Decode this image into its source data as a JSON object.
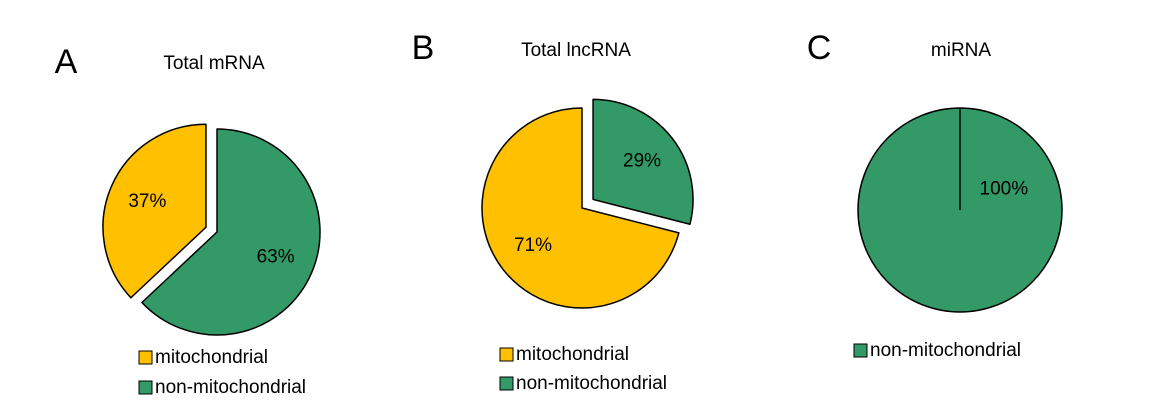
{
  "chart_data": [
    {
      "type": "pie",
      "panel_letter": "A",
      "title": "Total mRNA",
      "slices": [
        {
          "name": "mitochondrial",
          "value": 37,
          "label": "37%",
          "color": "#FFC000",
          "exploded": true
        },
        {
          "name": "non-mitochondrial",
          "value": 63,
          "label": "63%",
          "color": "#339966",
          "exploded": false
        }
      ],
      "legend": [
        "mitochondrial",
        "non-mitochondrial"
      ]
    },
    {
      "type": "pie",
      "panel_letter": "B",
      "title": "Total lncRNA",
      "slices": [
        {
          "name": "mitochondrial",
          "value": 71,
          "label": "71%",
          "color": "#FFC000",
          "exploded": false
        },
        {
          "name": "non-mitochondrial",
          "value": 29,
          "label": "29%",
          "color": "#339966",
          "exploded": true
        }
      ],
      "legend": [
        "mitochondrial",
        "non-mitochondrial"
      ]
    },
    {
      "type": "pie",
      "panel_letter": "C",
      "title": "miRNA",
      "slices": [
        {
          "name": "non-mitochondrial",
          "value": 100,
          "label": "100%",
          "color": "#339966",
          "exploded": false
        }
      ],
      "legend": [
        "non-mitochondrial"
      ]
    }
  ],
  "colors": {
    "mitochondrial": "#FFC000",
    "non-mitochondrial": "#339966",
    "outline": "#000000"
  }
}
